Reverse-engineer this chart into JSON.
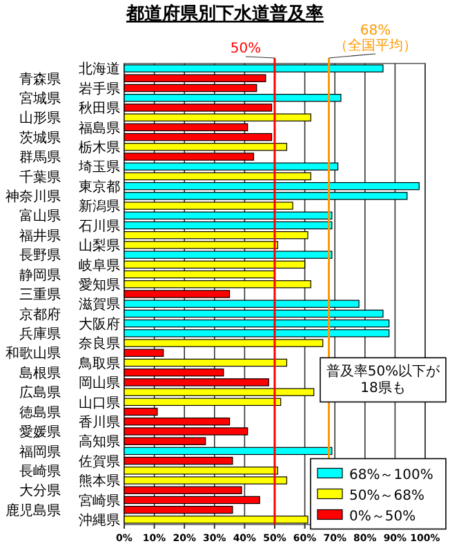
{
  "chart_data": {
    "type": "bar",
    "orientation": "horizontal",
    "title": "都道府県別下水道普及率",
    "categories": [
      "北海道",
      "青森県",
      "岩手県",
      "宮城県",
      "秋田県",
      "山形県",
      "福島県",
      "茨城県",
      "栃木県",
      "群馬県",
      "埼玉県",
      "千葉県",
      "東京都",
      "神奈川県",
      "新潟県",
      "富山県",
      "石川県",
      "福井県",
      "山梨県",
      "長野県",
      "岐阜県",
      "静岡県",
      "愛知県",
      "三重県",
      "滋賀県",
      "京都府",
      "大阪府",
      "兵庫県",
      "奈良県",
      "和歌山県",
      "鳥取県",
      "島根県",
      "岡山県",
      "広島県",
      "山口県",
      "徳島県",
      "香川県",
      "愛媛県",
      "高知県",
      "福岡県",
      "佐賀県",
      "長崎県",
      "熊本県",
      "大分県",
      "宮崎県",
      "鹿児島県",
      "沖縄県"
    ],
    "series": [
      {
        "name": "68%～100%",
        "color": "#00ffff",
        "values": [
          86,
          null,
          null,
          72,
          null,
          null,
          null,
          null,
          null,
          null,
          71,
          null,
          98,
          94,
          null,
          69,
          69,
          null,
          null,
          69,
          null,
          null,
          null,
          null,
          78,
          86,
          88,
          88,
          null,
          null,
          null,
          null,
          null,
          null,
          null,
          null,
          null,
          null,
          null,
          69,
          null,
          null,
          null,
          null,
          null,
          null,
          null
        ]
      },
      {
        "name": "50%～68%",
        "color": "#ffff00",
        "values": [
          null,
          null,
          null,
          null,
          null,
          62,
          null,
          null,
          54,
          null,
          null,
          62,
          null,
          null,
          56,
          null,
          null,
          61,
          51,
          null,
          60,
          50,
          62,
          null,
          null,
          null,
          null,
          null,
          66,
          null,
          54,
          null,
          null,
          63,
          52,
          null,
          null,
          null,
          null,
          null,
          null,
          51,
          54,
          null,
          null,
          null,
          61
        ]
      },
      {
        "name": "0%～50%",
        "color": "#ff0000",
        "values": [
          null,
          47,
          44,
          null,
          49,
          null,
          41,
          49,
          null,
          43,
          null,
          null,
          null,
          null,
          null,
          null,
          null,
          null,
          null,
          null,
          null,
          null,
          null,
          35,
          null,
          null,
          null,
          null,
          null,
          13,
          null,
          33,
          48,
          null,
          null,
          11,
          35,
          41,
          27,
          null,
          36,
          null,
          null,
          39,
          45,
          36,
          null
        ]
      }
    ],
    "xlim": [
      0,
      100
    ],
    "xticks": [
      {
        "value": 0,
        "label": "0%"
      },
      {
        "value": 10,
        "label": "10%"
      },
      {
        "value": 20,
        "label": "20%"
      },
      {
        "value": 30,
        "label": "30%"
      },
      {
        "value": 40,
        "label": "40%"
      },
      {
        "value": 50,
        "label": "50%"
      },
      {
        "value": 60,
        "label": "60%"
      },
      {
        "value": 70,
        "label": "70%"
      },
      {
        "value": 80,
        "label": "80%"
      },
      {
        "value": 90,
        "label": "90%"
      },
      {
        "value": 100,
        "label": "100%"
      }
    ],
    "grid": "x",
    "legend": "bottom right",
    "ref_lines": [
      {
        "axis": "x",
        "value": 50,
        "label": "50%",
        "color": "#ff0000"
      },
      {
        "axis": "x",
        "value": 68,
        "label": "68%\n（全国平均）",
        "color": "#ff9900"
      }
    ],
    "annotations": [
      "普及率50%以下が\n18県も"
    ]
  }
}
